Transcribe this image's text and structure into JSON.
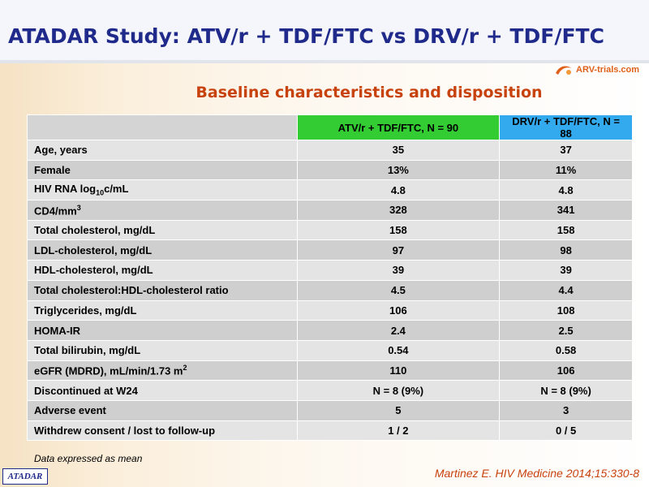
{
  "title": "ATADAR Study: ATV/r + TDF/FTC vs DRV/r + TDF/FTC",
  "logo": {
    "text": "ARV-trials.com",
    "icon": "swoosh-icon",
    "color": "#e0601a"
  },
  "subtitle": "Baseline characteristics and disposition",
  "table": {
    "headers": [
      "",
      "ATV/r + TDF/FTC, N = 90",
      "DRV/r + TDF/FTC, N = 88"
    ],
    "header_colors": {
      "atv": "#33cc33",
      "drv": "#33aaee"
    },
    "rows": [
      {
        "label": "Age, years",
        "atv": "35",
        "drv": "37"
      },
      {
        "label": "Female",
        "atv": "13%",
        "drv": "11%"
      },
      {
        "label": "HIV RNA log",
        "label_sub": "10",
        "label_after": "c/mL",
        "atv": "4.8",
        "drv": "4.8"
      },
      {
        "label": "CD4/mm",
        "label_sup": "3",
        "atv": "328",
        "drv": "341"
      },
      {
        "label": "Total cholesterol, mg/dL",
        "atv": "158",
        "drv": "158"
      },
      {
        "label": "LDL-cholesterol, mg/dL",
        "atv": "97",
        "drv": "98"
      },
      {
        "label": "HDL-cholesterol, mg/dL",
        "atv": "39",
        "drv": "39"
      },
      {
        "label": "Total cholesterol:HDL-cholesterol ratio",
        "atv": "4.5",
        "drv": "4.4"
      },
      {
        "label": "Triglycerides, mg/dL",
        "atv": "106",
        "drv": "108"
      },
      {
        "label": "HOMA-IR",
        "atv": "2.4",
        "drv": "2.5"
      },
      {
        "label": "Total bilirubin, mg/dL",
        "atv": "0.54",
        "drv": "0.58"
      },
      {
        "label": "eGFR (MDRD), mL/min/1.73 m",
        "label_sup": "2",
        "atv": "110",
        "drv": "106"
      },
      {
        "label": "Discontinued at W24",
        "atv": "N = 8 (9%)",
        "drv": "N = 8 (9%)"
      },
      {
        "label": "Adverse event",
        "indent": true,
        "atv": "5",
        "drv": "3"
      },
      {
        "label": "Withdrew consent / lost to follow-up",
        "indent": true,
        "atv": "1 / 2",
        "drv": "0 / 5"
      }
    ]
  },
  "footnote": "Data expressed as mean",
  "badge": "ATADAR",
  "citation": "Martinez E. HIV Medicine 2014;15:330-8",
  "colors": {
    "title": "#1f2a8a",
    "accent": "#c8420e"
  }
}
